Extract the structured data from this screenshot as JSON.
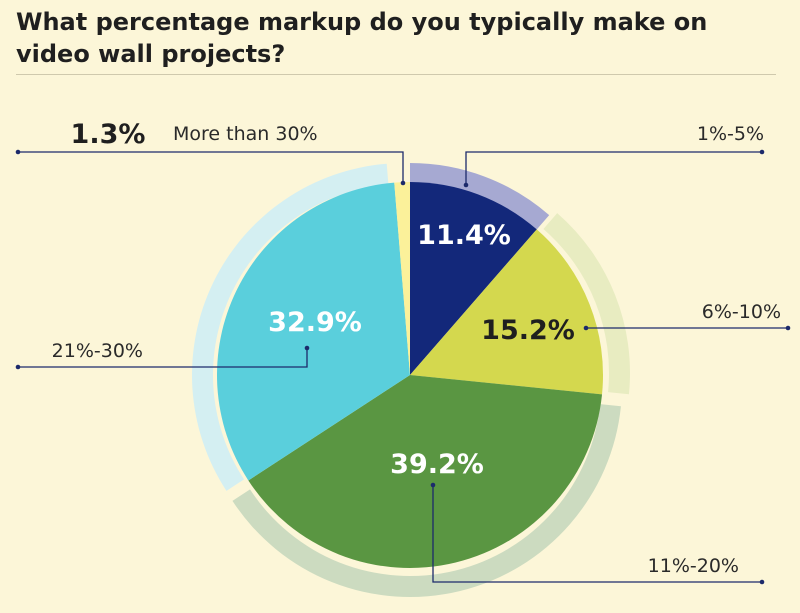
{
  "title": "What percentage markup do you typically make on video wall projects?",
  "chart_data": {
    "type": "pie",
    "categories": [
      "1%-5%",
      "6%-10%",
      "11%-20%",
      "21%-30%",
      "More than 30%"
    ],
    "values": [
      11.4,
      15.2,
      39.2,
      32.9,
      1.3
    ],
    "value_labels": [
      "11.4%",
      "15.2%",
      "39.2%",
      "32.9%",
      "1.3%"
    ],
    "colors": [
      "#13287a",
      "#d4d84e",
      "#5a9642",
      "#5acfdc",
      "#fbf19a"
    ],
    "ring_colors": [
      "#a6a9d2",
      "#e8ecc1",
      "#ccdbc0",
      "#d4eff2",
      "#fbf19a"
    ],
    "label_text_colors": [
      "#ffffff",
      "#1f1f1f",
      "#ffffff",
      "#ffffff",
      "#1f1f1f"
    ],
    "leader_color": "#1c2a6b"
  }
}
